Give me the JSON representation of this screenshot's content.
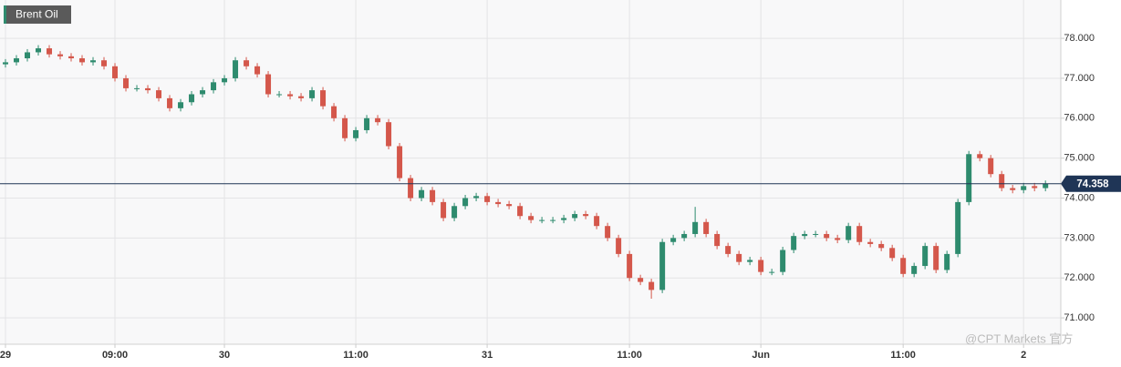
{
  "chart_data": {
    "type": "candlestick",
    "title": "Brent Oil",
    "watermark": "@CPT Markets 官方",
    "up_color": "#2e8b6e",
    "down_color": "#d4574b",
    "grid": true,
    "last_price": 74.358,
    "last_price_color": "#1f3556",
    "x": [
      0,
      1,
      2,
      3,
      4,
      5,
      6,
      7,
      8,
      9,
      10,
      11,
      12,
      13,
      14,
      15,
      16,
      17,
      18,
      19,
      20,
      21,
      22,
      23,
      24,
      25,
      26,
      27,
      28,
      29,
      30,
      31,
      32,
      33,
      34,
      35,
      36,
      37,
      38,
      39,
      40,
      41,
      42,
      43,
      44,
      45,
      46,
      47,
      48,
      49,
      50,
      51,
      52,
      53,
      54,
      55,
      56,
      57,
      58,
      59,
      60,
      61,
      62,
      63,
      64,
      65,
      66,
      67,
      68,
      69,
      70,
      71,
      72,
      73,
      74,
      75,
      76,
      77,
      78,
      79,
      80,
      81,
      82,
      83,
      84,
      85,
      86,
      87,
      88,
      89,
      90,
      91,
      92,
      93,
      94,
      95
    ],
    "open": [
      77.35,
      77.4,
      77.5,
      77.65,
      77.75,
      77.6,
      77.55,
      77.5,
      77.4,
      77.45,
      77.3,
      77.0,
      76.75,
      76.75,
      76.7,
      76.5,
      76.25,
      76.4,
      76.6,
      76.7,
      76.9,
      77.0,
      77.45,
      77.3,
      77.1,
      76.6,
      76.6,
      76.55,
      76.5,
      76.7,
      76.3,
      76.0,
      75.5,
      75.7,
      76.0,
      75.9,
      75.3,
      74.5,
      74.0,
      74.2,
      73.9,
      73.5,
      73.8,
      74.0,
      74.05,
      73.9,
      73.85,
      73.8,
      73.55,
      73.45,
      73.45,
      73.45,
      73.5,
      73.6,
      73.55,
      73.3,
      73.0,
      72.6,
      72.0,
      71.9,
      71.7,
      72.9,
      73.0,
      73.1,
      73.4,
      73.1,
      72.8,
      72.6,
      72.4,
      72.45,
      72.15,
      72.15,
      72.7,
      73.05,
      73.1,
      73.1,
      73.0,
      72.95,
      73.3,
      72.9,
      72.85,
      72.75,
      72.5,
      72.1,
      72.3,
      72.8,
      72.2,
      72.6,
      73.9,
      75.1,
      75.0,
      74.6,
      74.25,
      74.2,
      74.3,
      74.25
    ],
    "high": [
      77.48,
      77.58,
      77.73,
      77.83,
      77.83,
      77.68,
      77.63,
      77.58,
      77.53,
      77.53,
      77.38,
      77.08,
      76.83,
      76.83,
      76.78,
      76.58,
      76.48,
      76.68,
      76.78,
      76.98,
      77.08,
      77.53,
      77.53,
      77.38,
      77.18,
      76.68,
      76.68,
      76.63,
      76.78,
      76.78,
      76.38,
      76.08,
      75.78,
      76.08,
      76.08,
      75.98,
      75.38,
      74.58,
      74.28,
      74.28,
      73.98,
      73.88,
      74.08,
      74.13,
      74.13,
      73.98,
      73.93,
      73.88,
      73.63,
      73.53,
      73.53,
      73.58,
      73.68,
      73.68,
      73.63,
      73.38,
      73.08,
      72.68,
      72.08,
      71.98,
      72.98,
      73.08,
      73.18,
      73.78,
      73.48,
      73.18,
      72.88,
      72.68,
      72.53,
      72.53,
      72.23,
      72.78,
      73.13,
      73.18,
      73.18,
      73.18,
      73.08,
      73.38,
      73.38,
      72.98,
      72.93,
      72.83,
      72.58,
      72.38,
      72.88,
      72.88,
      72.68,
      73.98,
      75.18,
      75.18,
      75.08,
      74.68,
      74.33,
      74.38,
      74.38,
      74.44
    ],
    "low": [
      77.27,
      77.32,
      77.42,
      77.57,
      77.52,
      77.47,
      77.42,
      77.32,
      77.32,
      77.22,
      76.92,
      76.67,
      76.67,
      76.62,
      76.42,
      76.17,
      76.17,
      76.32,
      76.52,
      76.62,
      76.82,
      76.92,
      77.22,
      77.02,
      76.52,
      76.52,
      76.47,
      76.42,
      76.42,
      76.22,
      75.92,
      75.42,
      75.42,
      75.62,
      75.82,
      75.22,
      74.42,
      73.92,
      73.92,
      73.82,
      73.42,
      73.42,
      73.72,
      73.92,
      73.82,
      73.77,
      73.72,
      73.47,
      73.37,
      73.37,
      73.37,
      73.37,
      73.42,
      73.47,
      73.22,
      72.92,
      72.52,
      71.92,
      71.82,
      71.48,
      71.62,
      72.82,
      72.92,
      73.02,
      73.02,
      72.72,
      72.52,
      72.32,
      72.32,
      72.07,
      72.07,
      72.07,
      72.62,
      72.97,
      73.02,
      72.92,
      72.87,
      72.87,
      72.82,
      72.77,
      72.67,
      72.42,
      72.02,
      72.02,
      72.22,
      72.12,
      72.12,
      72.52,
      73.82,
      74.92,
      74.52,
      74.17,
      74.12,
      74.12,
      74.17,
      74.17
    ],
    "close": [
      77.4,
      77.5,
      77.65,
      77.75,
      77.6,
      77.55,
      77.5,
      77.4,
      77.45,
      77.3,
      77.0,
      76.75,
      76.75,
      76.7,
      76.5,
      76.25,
      76.4,
      76.6,
      76.7,
      76.9,
      77.0,
      77.45,
      77.3,
      77.1,
      76.6,
      76.6,
      76.55,
      76.5,
      76.7,
      76.3,
      76.0,
      75.5,
      75.7,
      76.0,
      75.9,
      75.3,
      74.5,
      74.0,
      74.2,
      73.9,
      73.5,
      73.8,
      74.0,
      74.05,
      73.9,
      73.85,
      73.8,
      73.55,
      73.45,
      73.45,
      73.45,
      73.5,
      73.6,
      73.55,
      73.3,
      73.0,
      72.6,
      72.0,
      71.9,
      71.7,
      72.9,
      73.0,
      73.1,
      73.4,
      73.1,
      72.8,
      72.6,
      72.4,
      72.45,
      72.15,
      72.15,
      72.7,
      73.05,
      73.1,
      73.1,
      73.0,
      72.95,
      73.3,
      72.9,
      72.85,
      72.75,
      72.5,
      72.1,
      72.3,
      72.8,
      72.2,
      72.6,
      73.9,
      75.1,
      75.0,
      74.6,
      74.25,
      74.2,
      74.3,
      74.25,
      74.36
    ],
    "xlim": [
      -0.5,
      96.4
    ],
    "xticks": [
      {
        "value": 0,
        "label": "29"
      },
      {
        "value": 10,
        "label": "09:00"
      },
      {
        "value": 20,
        "label": "30"
      },
      {
        "value": 32,
        "label": "11:00"
      },
      {
        "value": 44,
        "label": "31"
      },
      {
        "value": 57,
        "label": "11:00"
      },
      {
        "value": 69,
        "label": "Jun"
      },
      {
        "value": 82,
        "label": "11:00"
      },
      {
        "value": 93,
        "label": "2"
      }
    ],
    "ylim": [
      70.34,
      78.96
    ],
    "yticks": [
      {
        "value": 71,
        "label": "71.000"
      },
      {
        "value": 72,
        "label": "72.000"
      },
      {
        "value": 73,
        "label": "73.000"
      },
      {
        "value": 74,
        "label": "74.000"
      },
      {
        "value": 75,
        "label": "75.000"
      },
      {
        "value": 76,
        "label": "76.000"
      },
      {
        "value": 77,
        "label": "77.000"
      },
      {
        "value": 78,
        "label": "78.000"
      }
    ]
  }
}
